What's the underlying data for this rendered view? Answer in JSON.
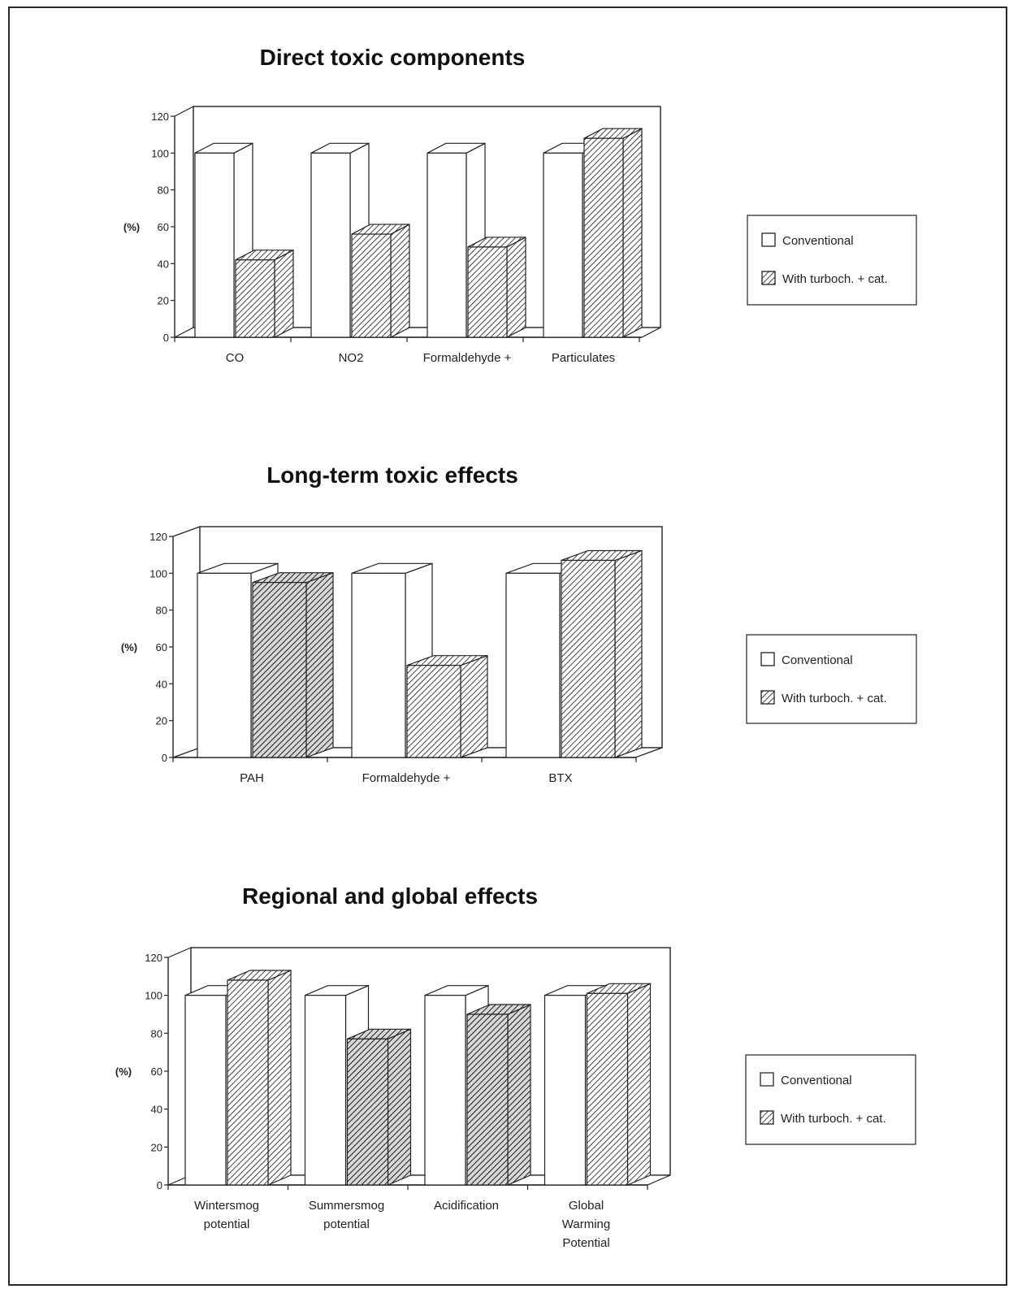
{
  "chart_data": [
    {
      "type": "bar",
      "title": "Direct toxic components",
      "ylabel": "(%)",
      "ylim": [
        0,
        120
      ],
      "yticks": [
        0,
        20,
        40,
        60,
        80,
        100,
        120
      ],
      "categories": [
        [
          "CO"
        ],
        [
          "NO2"
        ],
        [
          "Formaldehyde +"
        ],
        [
          "Particulates"
        ]
      ],
      "series": [
        {
          "name": "Conventional",
          "values": [
            100,
            100,
            100,
            100
          ]
        },
        {
          "name": "With turboch. + cat.",
          "values": [
            42,
            56,
            49,
            108
          ]
        }
      ],
      "legend_position": "right",
      "grid": false
    },
    {
      "type": "bar",
      "title": "Long-term toxic effects",
      "ylabel": "(%)",
      "ylim": [
        0,
        120
      ],
      "yticks": [
        0,
        20,
        40,
        60,
        80,
        100,
        120
      ],
      "categories": [
        [
          "PAH"
        ],
        [
          "Formaldehyde +"
        ],
        [
          "BTX"
        ]
      ],
      "series": [
        {
          "name": "Conventional",
          "values": [
            100,
            100,
            100
          ]
        },
        {
          "name": "With turboch. + cat.",
          "values": [
            95,
            50,
            107
          ]
        }
      ],
      "legend_position": "right",
      "grid": false
    },
    {
      "type": "bar",
      "title": "Regional and global effects",
      "ylabel": "(%)",
      "ylim": [
        0,
        120
      ],
      "yticks": [
        0,
        20,
        40,
        60,
        80,
        100,
        120
      ],
      "categories": [
        [
          "Wintersmog",
          "potential"
        ],
        [
          "Summersmog",
          "potential"
        ],
        [
          "Acidification"
        ],
        [
          "Global",
          "Warming",
          "Potential"
        ]
      ],
      "series": [
        {
          "name": "Conventional",
          "values": [
            100,
            100,
            100,
            100
          ]
        },
        {
          "name": "With turboch. + cat.",
          "values": [
            108,
            77,
            90,
            101
          ]
        }
      ],
      "legend_position": "right",
      "grid": false
    }
  ]
}
